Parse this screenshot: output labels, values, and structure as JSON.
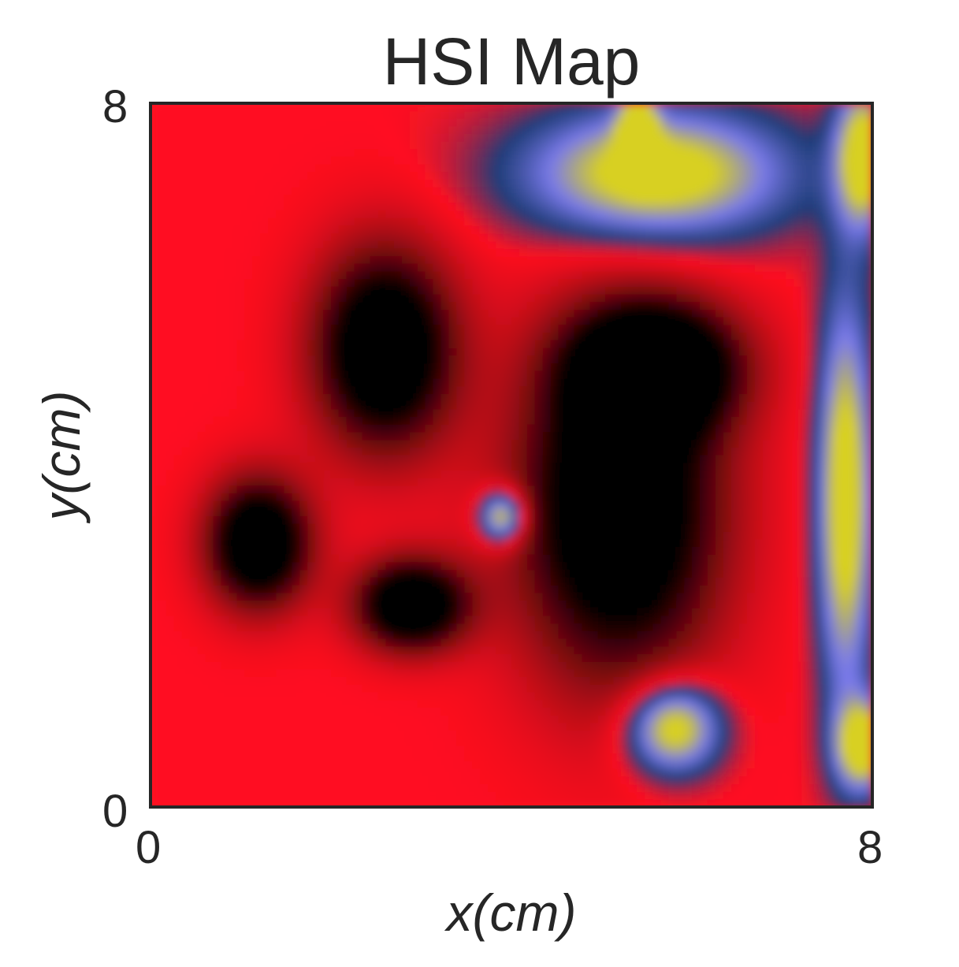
{
  "chart_data": {
    "type": "heatmap",
    "title": "HSI Map",
    "xlabel": "x(cm)",
    "ylabel": "y(cm)",
    "xlim": [
      0,
      8
    ],
    "ylim": [
      0,
      8
    ],
    "x_ticks": [
      "0",
      "8"
    ],
    "y_ticks": [
      "0",
      "8"
    ],
    "grid": false,
    "colormap": [
      "#000000",
      "#ff1020",
      "#1e3c78",
      "#7a7aea",
      "#d8d020"
    ],
    "features": [
      {
        "kind": "low",
        "x": 2.6,
        "y": 5.2,
        "sx": 0.75,
        "sy": 1.1
      },
      {
        "kind": "low",
        "x": 1.2,
        "y": 3.0,
        "sx": 0.55,
        "sy": 0.7
      },
      {
        "kind": "low",
        "x": 2.9,
        "y": 2.3,
        "sx": 0.6,
        "sy": 0.5
      },
      {
        "kind": "low",
        "x": 5.2,
        "y": 3.4,
        "sx": 1.1,
        "sy": 1.9
      },
      {
        "kind": "low",
        "x": 5.6,
        "y": 5.0,
        "sx": 0.9,
        "sy": 0.7
      },
      {
        "kind": "high",
        "x": 5.6,
        "y": 7.2,
        "sx": 1.4,
        "sy": 0.7
      },
      {
        "kind": "high",
        "x": 3.9,
        "y": 3.3,
        "sx": 0.25,
        "sy": 0.3
      },
      {
        "kind": "high",
        "x": 5.8,
        "y": 0.9,
        "sx": 0.5,
        "sy": 0.5
      },
      {
        "kind": "high",
        "x": 7.7,
        "y": 3.5,
        "sx": 0.3,
        "sy": 2.2
      },
      {
        "kind": "high",
        "x": 7.9,
        "y": 7.4,
        "sx": 0.3,
        "sy": 0.8
      },
      {
        "kind": "high",
        "x": 7.9,
        "y": 0.7,
        "sx": 0.3,
        "sy": 0.5
      },
      {
        "kind": "high",
        "x": 5.4,
        "y": 7.7,
        "sx": 0.2,
        "sy": 0.4
      }
    ]
  }
}
